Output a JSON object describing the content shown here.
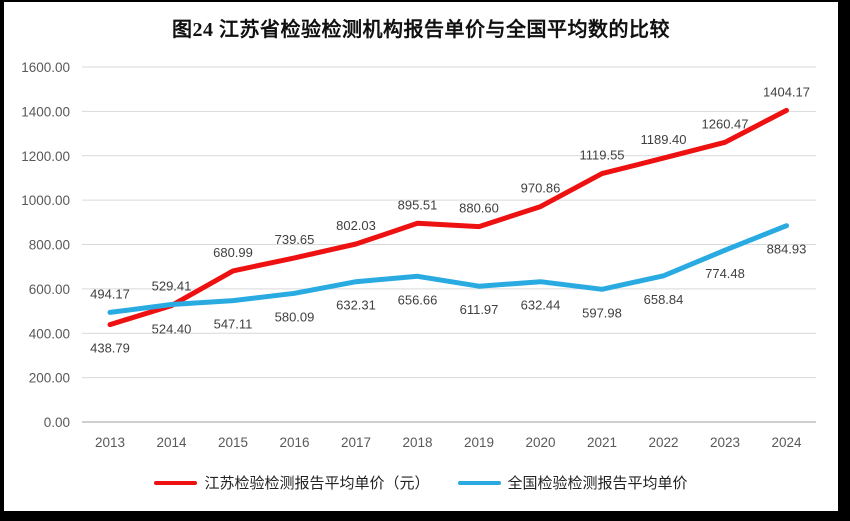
{
  "chart_data": {
    "type": "line",
    "title": "图24  江苏省检验检测机构报告单价与全国平均数的比较",
    "categories": [
      "2013",
      "2014",
      "2015",
      "2016",
      "2017",
      "2018",
      "2019",
      "2020",
      "2021",
      "2022",
      "2023",
      "2024"
    ],
    "series": [
      {
        "name": "江苏检验检测报告平均单价（元）",
        "color": "#ee1111",
        "values": [
          438.79,
          524.4,
          680.99,
          739.65,
          802.03,
          895.51,
          880.6,
          970.86,
          1119.55,
          1189.4,
          1260.47,
          1404.17
        ],
        "label_sides": [
          "below",
          "below",
          "above",
          "above",
          "above",
          "above",
          "above",
          "above",
          "above",
          "above",
          "above",
          "above"
        ]
      },
      {
        "name": "全国检验检测报告平均单价",
        "color": "#29abe2",
        "values": [
          494.17,
          529.41,
          547.11,
          580.09,
          632.31,
          656.66,
          611.97,
          632.44,
          597.98,
          658.84,
          774.48,
          884.93
        ],
        "label_sides": [
          "above",
          "above",
          "below",
          "below",
          "below",
          "below",
          "below",
          "below",
          "below",
          "below",
          "below",
          "below"
        ]
      }
    ],
    "xlabel": "",
    "ylabel": "",
    "ylim": [
      0,
      1600
    ],
    "ytick_step": 200,
    "ytick_format_decimals": 2,
    "grid": "horizontal",
    "gridline_color": "#d9d9d9",
    "axis_line_color": "#bfbfbf",
    "axis_label_color": "#595959",
    "data_label_color": "#404040",
    "legend_position": "bottom"
  }
}
